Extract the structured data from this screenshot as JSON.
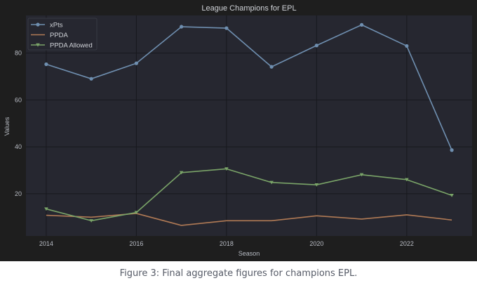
{
  "chart_data": {
    "type": "line",
    "title": "League Champions for EPL",
    "xlabel": "Season",
    "ylabel": "Values",
    "x": [
      2014,
      2015,
      2016,
      2017,
      2018,
      2019,
      2020,
      2021,
      2022,
      2023
    ],
    "xticks": [
      "2014",
      "2016",
      "2018",
      "2020",
      "2022"
    ],
    "yticks": [
      "20",
      "40",
      "60",
      "80"
    ],
    "xlim": [
      2013.55,
      2023.45
    ],
    "ylim": [
      2,
      96
    ],
    "grid": true,
    "legend_position": "top-left",
    "series": [
      {
        "name": "xPts",
        "color": "#6f8fb0",
        "marker": "circle",
        "values": [
          75.2,
          69.0,
          75.6,
          91.2,
          90.6,
          74.1,
          83.2,
          92.0,
          83.0,
          38.6
        ]
      },
      {
        "name": "PPDA",
        "color": "#b07a55",
        "marker": "none",
        "values": [
          10.8,
          10.0,
          11.6,
          6.5,
          8.5,
          8.5,
          10.6,
          9.2,
          11.0,
          8.8
        ]
      },
      {
        "name": "PPDA Allowed",
        "color": "#7aa468",
        "marker": "triangle-down",
        "values": [
          13.5,
          8.5,
          12.0,
          29.0,
          30.6,
          24.8,
          23.8,
          28.1,
          26.0,
          19.3
        ]
      }
    ]
  },
  "caption": "Figure 3: Final aggregate figures for champions EPL."
}
